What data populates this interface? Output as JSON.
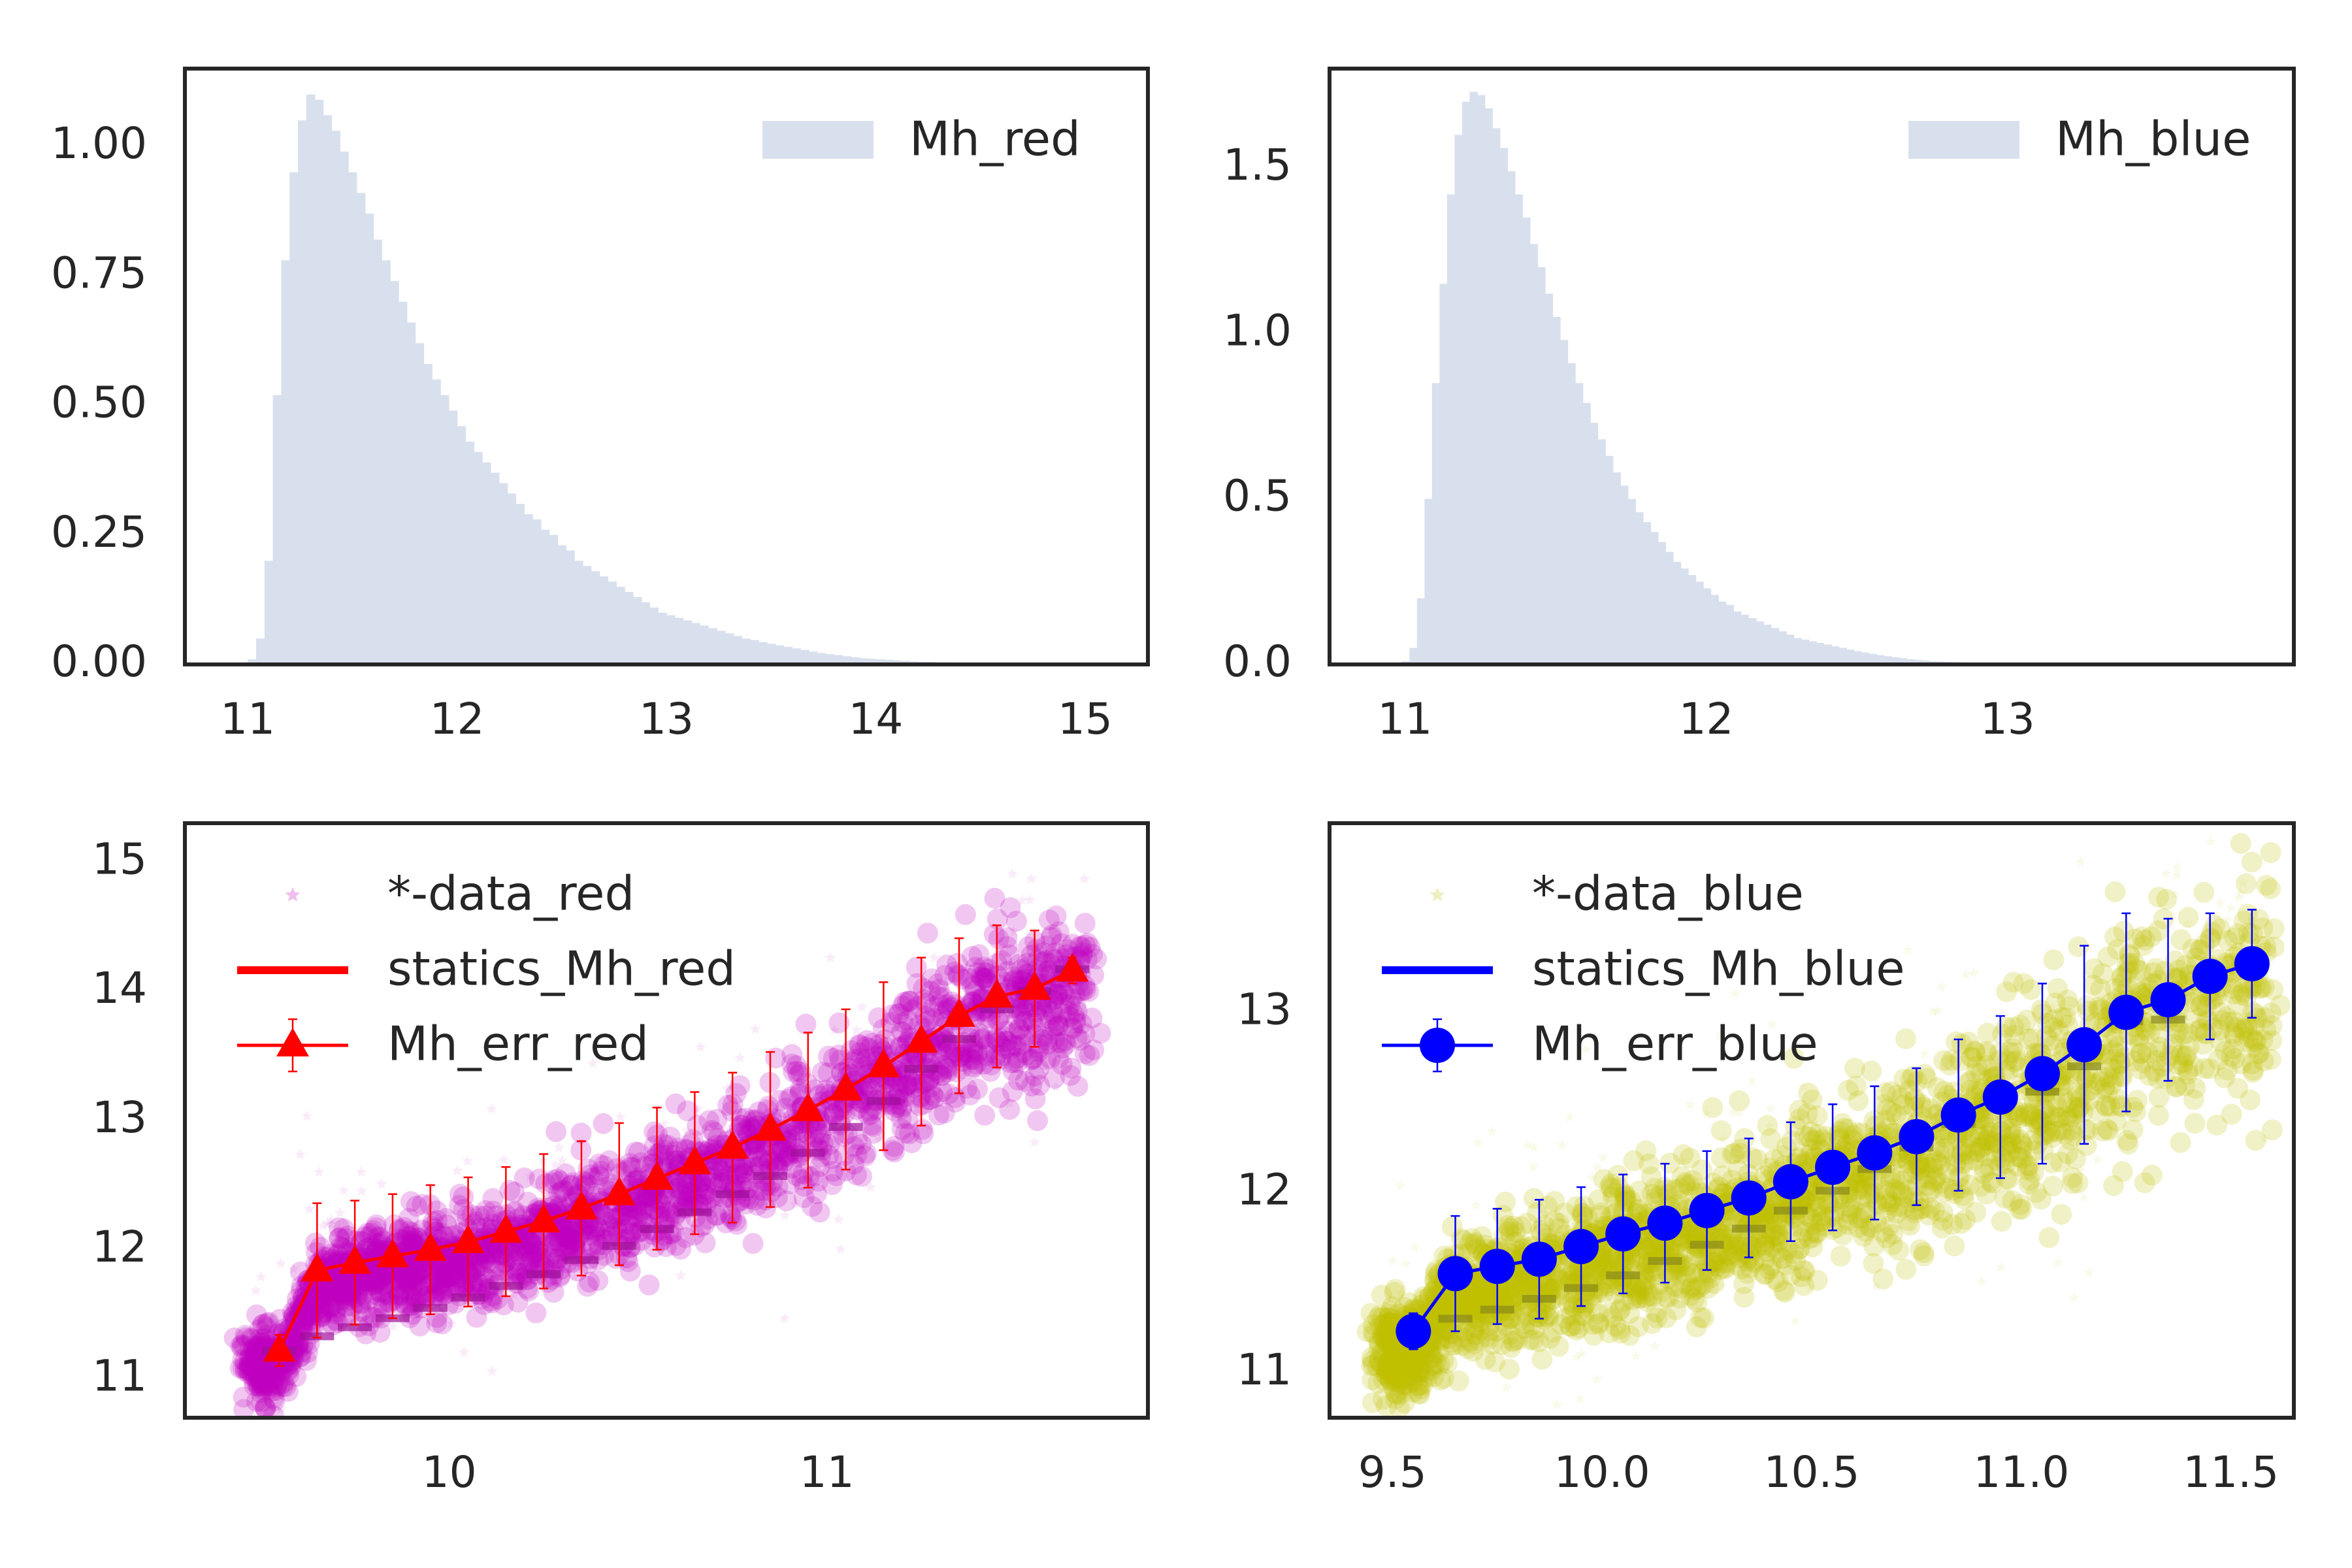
{
  "figure": {
    "background": "#ffffff"
  },
  "chart_data": [
    {
      "id": "p1",
      "type": "histogram",
      "xlim": [
        10.7,
        15.3
      ],
      "ylim": [
        0,
        1.15
      ],
      "xticks": [
        11,
        12,
        13,
        14,
        15
      ],
      "yticks": [
        0.0,
        0.25,
        0.5,
        0.75,
        1.0
      ],
      "ytick_labels": [
        "0.00",
        "0.25",
        "0.50",
        "0.75",
        "1.00"
      ],
      "xtick_labels": [
        "11",
        "12",
        "13",
        "14",
        "15"
      ],
      "grid": false,
      "legend_position": "top-right",
      "series": [
        {
          "name": "Mh_red",
          "color": "#d9e0ed",
          "bin_start": 11.0,
          "bin_width": 0.04,
          "values": [
            0.01,
            0.05,
            0.2,
            0.52,
            0.78,
            0.95,
            1.05,
            1.1,
            1.09,
            1.06,
            1.03,
            0.99,
            0.95,
            0.91,
            0.87,
            0.82,
            0.78,
            0.74,
            0.7,
            0.66,
            0.62,
            0.58,
            0.55,
            0.52,
            0.49,
            0.46,
            0.43,
            0.41,
            0.39,
            0.37,
            0.35,
            0.33,
            0.31,
            0.29,
            0.28,
            0.26,
            0.25,
            0.23,
            0.22,
            0.2,
            0.19,
            0.18,
            0.17,
            0.16,
            0.15,
            0.14,
            0.13,
            0.12,
            0.11,
            0.1,
            0.095,
            0.09,
            0.085,
            0.08,
            0.075,
            0.07,
            0.065,
            0.06,
            0.055,
            0.05,
            0.047,
            0.043,
            0.04,
            0.037,
            0.034,
            0.031,
            0.028,
            0.025,
            0.022,
            0.02,
            0.018,
            0.016,
            0.014,
            0.012,
            0.011,
            0.01,
            0.009,
            0.008,
            0.007,
            0.006,
            0.005,
            0.005,
            0.004,
            0.004,
            0.003,
            0.003,
            0.002,
            0.002,
            0.002,
            0.001
          ]
        }
      ]
    },
    {
      "id": "p2",
      "type": "histogram",
      "xlim": [
        10.75,
        13.95
      ],
      "ylim": [
        0,
        1.8
      ],
      "xticks": [
        11,
        12,
        13
      ],
      "yticks": [
        0.0,
        0.5,
        1.0,
        1.5
      ],
      "ytick_labels": [
        "0.0",
        "0.5",
        "1.0",
        "1.5"
      ],
      "xtick_labels": [
        "11",
        "12",
        "13"
      ],
      "grid": false,
      "legend_position": "top-right",
      "series": [
        {
          "name": "Mh_blue",
          "color": "#d9e0ed",
          "bin_start": 10.99,
          "bin_width": 0.025,
          "values": [
            0.01,
            0.05,
            0.2,
            0.5,
            0.85,
            1.15,
            1.42,
            1.6,
            1.7,
            1.73,
            1.72,
            1.68,
            1.62,
            1.56,
            1.49,
            1.42,
            1.35,
            1.27,
            1.2,
            1.12,
            1.05,
            0.98,
            0.91,
            0.85,
            0.79,
            0.73,
            0.68,
            0.63,
            0.58,
            0.54,
            0.5,
            0.46,
            0.43,
            0.4,
            0.37,
            0.34,
            0.31,
            0.29,
            0.27,
            0.25,
            0.23,
            0.21,
            0.19,
            0.18,
            0.16,
            0.15,
            0.14,
            0.13,
            0.12,
            0.11,
            0.1,
            0.09,
            0.08,
            0.075,
            0.07,
            0.065,
            0.06,
            0.055,
            0.05,
            0.045,
            0.04,
            0.036,
            0.032,
            0.028,
            0.025,
            0.022,
            0.019,
            0.016,
            0.014,
            0.012,
            0.01,
            0.009,
            0.008,
            0.007,
            0.006,
            0.005,
            0.004,
            0.003,
            0.003,
            0.002,
            0.002,
            0.001,
            0.001,
            0.001
          ]
        }
      ]
    },
    {
      "id": "p3",
      "type": "scatter",
      "xlim": [
        9.3,
        11.85
      ],
      "ylim": [
        10.7,
        15.3
      ],
      "xticks": [
        10,
        11
      ],
      "yticks": [
        11,
        12,
        13,
        14,
        15
      ],
      "xtick_labels": [
        "10",
        "11"
      ],
      "ytick_labels": [
        "11",
        "12",
        "13",
        "14",
        "15"
      ],
      "grid": false,
      "legend_position": "top-left",
      "scatter": {
        "name": "*-data_red",
        "color": "#bf00bf",
        "marker": "star"
      },
      "statics": {
        "name": "statics_Mh_red",
        "color": "#ff0000",
        "x": [
          9.55,
          9.65,
          9.75,
          9.85,
          9.95,
          10.05,
          10.15,
          10.25,
          10.35,
          10.45,
          10.55,
          10.65,
          10.75,
          10.85,
          10.95,
          11.05,
          11.15,
          11.25,
          11.35,
          11.45,
          11.55,
          11.65
        ],
        "y": [
          11.22,
          11.33,
          11.4,
          11.47,
          11.55,
          11.63,
          11.72,
          11.81,
          11.92,
          12.03,
          12.16,
          12.29,
          12.43,
          12.57,
          12.75,
          12.95,
          13.15,
          13.4,
          13.63,
          13.86,
          14.0,
          14.17
        ]
      },
      "err": {
        "name": "Mh_err_red",
        "color": "#ff0000",
        "marker": "triangle",
        "x": [
          9.55,
          9.65,
          9.75,
          9.85,
          9.95,
          10.05,
          10.15,
          10.25,
          10.35,
          10.45,
          10.55,
          10.65,
          10.75,
          10.85,
          10.95,
          11.05,
          11.15,
          11.25,
          11.35,
          11.45,
          11.55,
          11.65
        ],
        "y": [
          11.22,
          11.84,
          11.9,
          11.95,
          12.0,
          12.06,
          12.14,
          12.22,
          12.32,
          12.43,
          12.55,
          12.67,
          12.79,
          12.93,
          13.08,
          13.24,
          13.42,
          13.61,
          13.81,
          13.96,
          14.02,
          14.16
        ],
        "yerr": [
          0.12,
          0.52,
          0.48,
          0.48,
          0.5,
          0.5,
          0.5,
          0.52,
          0.52,
          0.55,
          0.55,
          0.55,
          0.58,
          0.6,
          0.6,
          0.62,
          0.65,
          0.65,
          0.6,
          0.55,
          0.45,
          0.1
        ]
      }
    },
    {
      "id": "p4",
      "type": "scatter",
      "xlim": [
        9.35,
        11.65
      ],
      "ylim": [
        10.75,
        14.05
      ],
      "xticks": [
        9.5,
        10.0,
        10.5,
        11.0,
        11.5
      ],
      "yticks": [
        11,
        12,
        13
      ],
      "xtick_labels": [
        "9.5",
        "10.0",
        "10.5",
        "11.0",
        "11.5"
      ],
      "ytick_labels": [
        "11",
        "12",
        "13"
      ],
      "grid": false,
      "legend_position": "top-left",
      "scatter": {
        "name": "*-data_blue",
        "color": "#bfbf00",
        "marker": "star"
      },
      "statics": {
        "name": "statics_Mh_blue",
        "color": "#0000ff",
        "x": [
          9.55,
          9.65,
          9.75,
          9.85,
          9.95,
          10.05,
          10.15,
          10.25,
          10.35,
          10.45,
          10.55,
          10.65,
          10.75,
          10.85,
          10.95,
          11.05,
          11.15,
          11.25,
          11.35,
          11.45,
          11.55
        ],
        "y": [
          11.23,
          11.3,
          11.35,
          11.41,
          11.47,
          11.54,
          11.62,
          11.71,
          11.8,
          11.9,
          12.01,
          12.13,
          12.25,
          12.38,
          12.51,
          12.56,
          12.7,
          12.95,
          12.96,
          13.2,
          13.28
        ],
        "err_y": [
          11.23,
          11.55,
          11.59,
          11.63,
          11.7,
          11.77,
          11.83,
          11.9,
          11.97,
          12.06,
          12.14,
          12.22,
          12.31,
          12.43,
          12.53,
          12.66,
          12.82,
          13.0,
          13.07,
          13.2,
          13.27
        ],
        "err_yerr": [
          0.1,
          0.32,
          0.32,
          0.33,
          0.33,
          0.33,
          0.33,
          0.33,
          0.33,
          0.33,
          0.35,
          0.37,
          0.38,
          0.42,
          0.45,
          0.5,
          0.55,
          0.55,
          0.45,
          0.35,
          0.3
        ]
      },
      "err": {
        "name": "Mh_err_blue",
        "color": "#0000ff",
        "marker": "circle"
      }
    }
  ]
}
